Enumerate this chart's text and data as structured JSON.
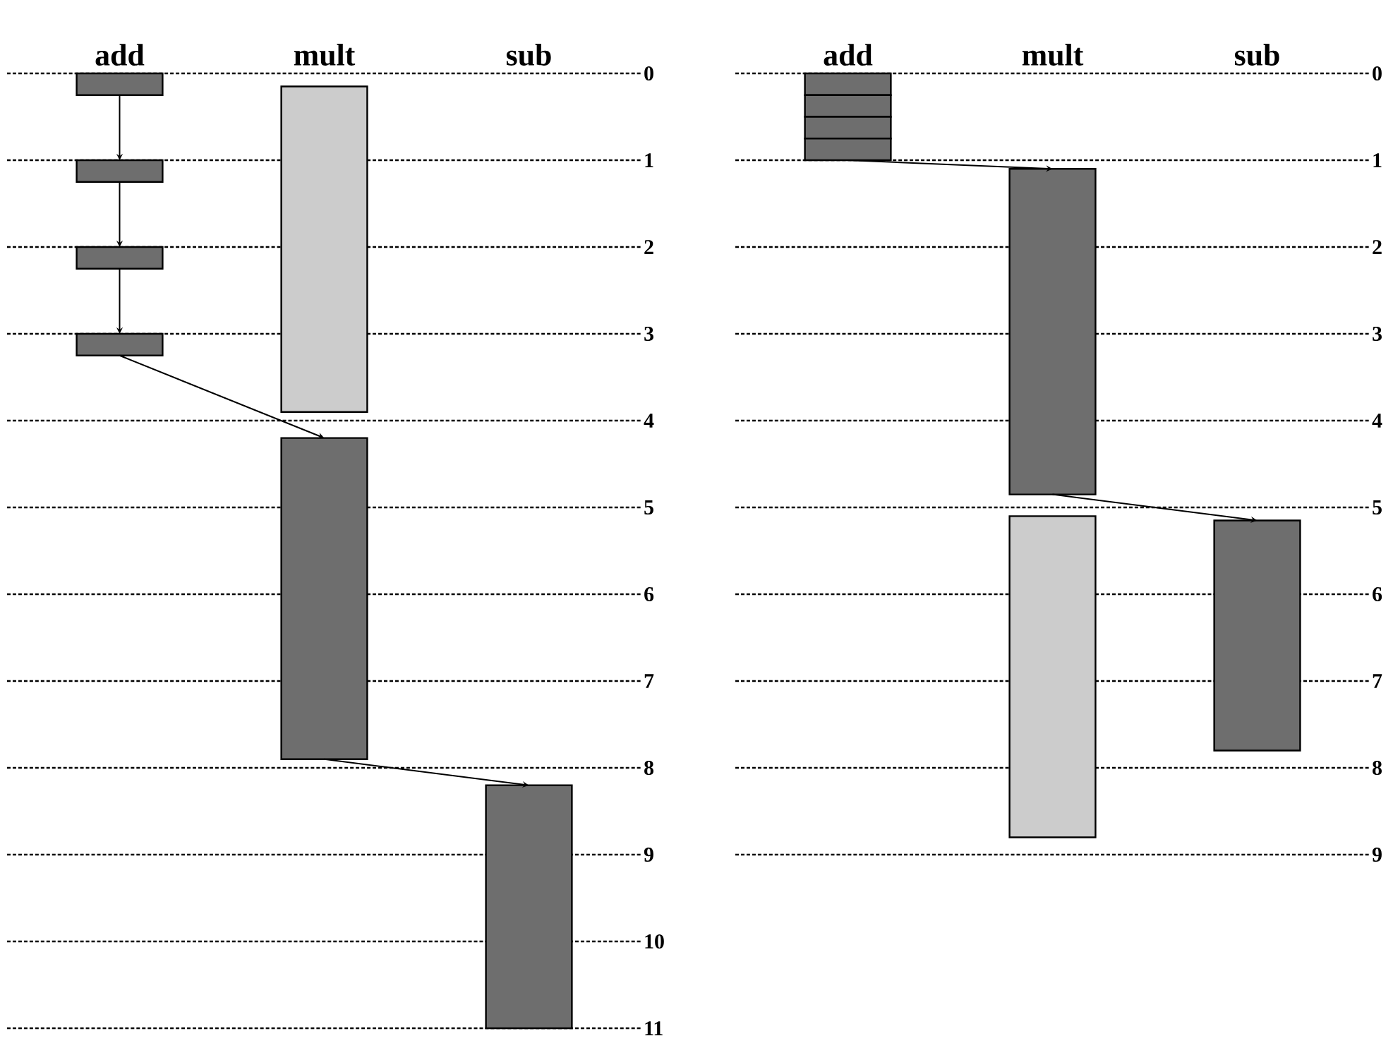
{
  "chart_data": [
    {
      "type": "bar",
      "categories": [
        "add",
        "mult",
        "sub"
      ],
      "ylim": [
        11,
        0
      ],
      "yticks": [
        0,
        1,
        2,
        3,
        4,
        5,
        6,
        7,
        8,
        9,
        10,
        11
      ],
      "grid": "y",
      "series": [
        {
          "color": "#6e6e6e",
          "values": [
            0.25,
            null,
            null
          ],
          "base": [
            0,
            null,
            null
          ]
        },
        {
          "color": "#6e6e6e",
          "values": [
            0.25,
            null,
            null
          ],
          "base": [
            1,
            null,
            null
          ]
        },
        {
          "color": "#6e6e6e",
          "values": [
            0.25,
            null,
            null
          ],
          "base": [
            2,
            null,
            null
          ]
        },
        {
          "color": "#6e6e6e",
          "values": [
            0.25,
            null,
            null
          ],
          "base": [
            3,
            null,
            null
          ]
        },
        {
          "color": "#6e6e6e",
          "values": [
            null,
            3.7,
            null
          ],
          "base": [
            null,
            4.2,
            null
          ]
        },
        {
          "color": "#6e6e6e",
          "values": [
            null,
            null,
            2.8
          ],
          "base": [
            null,
            null,
            8.2
          ]
        },
        {
          "color": "#cccccc",
          "values": [
            null,
            3.75,
            null
          ],
          "base": [
            null,
            0.15,
            null
          ]
        }
      ]
    },
    {
      "type": "bar",
      "categories": [
        "add",
        "mult",
        "sub"
      ],
      "ylim": [
        9,
        0
      ],
      "yticks": [
        0,
        1,
        2,
        3,
        4,
        5,
        6,
        7,
        8,
        9
      ],
      "grid": "y",
      "series": [
        {
          "color": "#6e6e6e",
          "values": [
            0.25,
            null,
            null
          ],
          "base": [
            0,
            null,
            null
          ]
        },
        {
          "color": "#6e6e6e",
          "values": [
            0.25,
            null,
            null
          ],
          "base": [
            0.25,
            null,
            null
          ]
        },
        {
          "color": "#6e6e6e",
          "values": [
            0.25,
            null,
            null
          ],
          "base": [
            0.5,
            null,
            null
          ]
        },
        {
          "color": "#6e6e6e",
          "values": [
            0.25,
            null,
            null
          ],
          "base": [
            0.75,
            null,
            null
          ]
        },
        {
          "color": "#6e6e6e",
          "values": [
            null,
            3.75,
            null
          ],
          "base": [
            null,
            1.1,
            null
          ]
        },
        {
          "color": "#6e6e6e",
          "values": [
            null,
            null,
            2.65
          ],
          "base": [
            null,
            null,
            5.15
          ]
        },
        {
          "color": "#cccccc",
          "values": [
            null,
            3.7,
            null
          ],
          "base": [
            null,
            5.1,
            null
          ]
        }
      ]
    }
  ]
}
